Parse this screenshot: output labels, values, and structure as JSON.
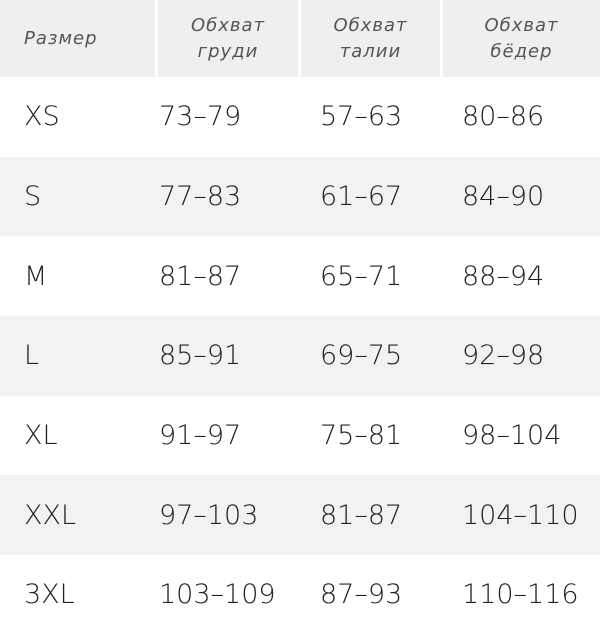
{
  "table": {
    "header": [
      "Размер",
      "Обхват\nгруди",
      "Обхват\nталии",
      "Обхват\nбёдер"
    ],
    "rows": [
      [
        "XS",
        "73–79",
        "57–63",
        "80–86"
      ],
      [
        "S",
        "77–83",
        "61–67",
        "84–90"
      ],
      [
        "M",
        "81–87",
        "65–71",
        "88–94"
      ],
      [
        "L",
        "85–91",
        "69–75",
        "92–98"
      ],
      [
        "XL",
        "91–97",
        "75–81",
        "98–104"
      ],
      [
        "XXL",
        "97–103",
        "81–87",
        "104–110"
      ],
      [
        "3XL",
        "103–109",
        "87–93",
        "110–116"
      ]
    ]
  }
}
